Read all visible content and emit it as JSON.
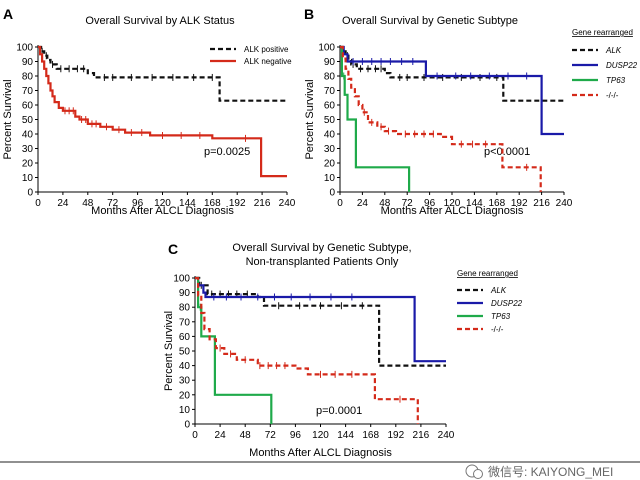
{
  "watermark": "微信号: KAIYONG_MEI",
  "colors": {
    "alk": "#111111",
    "dusp22": "#1a1aa8",
    "tp63": "#1faa4a",
    "neg": "#d42a1a",
    "alk_negative": "#d42a1a"
  },
  "chart_data": [
    {
      "type": "line",
      "label": "A",
      "title": "Overall Survival by ALK Status",
      "xlabel": "Months After ALCL Diagnosis",
      "ylabel": "Percent Survival",
      "xlim": [
        0,
        240
      ],
      "ylim": [
        0,
        100
      ],
      "xticks": [
        0,
        24,
        48,
        72,
        96,
        120,
        144,
        168,
        192,
        216,
        240
      ],
      "yticks": [
        0,
        10,
        20,
        30,
        40,
        50,
        60,
        70,
        80,
        90,
        100
      ],
      "legend_title": "",
      "annotation": "p=0.0025",
      "series": [
        {
          "name": "ALK positive",
          "color": "#111111",
          "dashed": true,
          "steps": [
            [
              0,
              100
            ],
            [
              3,
              97
            ],
            [
              6,
              94
            ],
            [
              9,
              91
            ],
            [
              12,
              88
            ],
            [
              18,
              85
            ],
            [
              48,
              82
            ],
            [
              54,
              79
            ],
            [
              174,
              79
            ],
            [
              175,
              63
            ],
            [
              240,
              63
            ]
          ],
          "censors": [
            [
              4,
              97
            ],
            [
              8,
              94
            ],
            [
              14,
              88
            ],
            [
              22,
              85
            ],
            [
              30,
              85
            ],
            [
              38,
              85
            ],
            [
              44,
              85
            ],
            [
              64,
              79
            ],
            [
              72,
              79
            ],
            [
              90,
              79
            ],
            [
              110,
              79
            ],
            [
              130,
              79
            ],
            [
              150,
              79
            ],
            [
              168,
              79
            ]
          ]
        },
        {
          "name": "ALK negative",
          "color": "#d42a1a",
          "dashed": false,
          "steps": [
            [
              0,
              100
            ],
            [
              2,
              95
            ],
            [
              4,
              90
            ],
            [
              6,
              85
            ],
            [
              8,
              80
            ],
            [
              10,
              75
            ],
            [
              12,
              70
            ],
            [
              14,
              66
            ],
            [
              16,
              62
            ],
            [
              20,
              58
            ],
            [
              24,
              56
            ],
            [
              36,
              52
            ],
            [
              40,
              50
            ],
            [
              48,
              47
            ],
            [
              60,
              45
            ],
            [
              72,
              43
            ],
            [
              84,
              41
            ],
            [
              108,
              39
            ],
            [
              168,
              37
            ],
            [
              214,
              37
            ],
            [
              215,
              11
            ],
            [
              240,
              11
            ]
          ],
          "censors": [
            [
              26,
              56
            ],
            [
              30,
              56
            ],
            [
              34,
              56
            ],
            [
              42,
              50
            ],
            [
              46,
              50
            ],
            [
              52,
              47
            ],
            [
              56,
              47
            ],
            [
              66,
              45
            ],
            [
              78,
              43
            ],
            [
              90,
              41
            ],
            [
              100,
              41
            ],
            [
              120,
              39
            ],
            [
              138,
              39
            ],
            [
              156,
              39
            ],
            [
              200,
              37
            ]
          ]
        }
      ]
    },
    {
      "type": "line",
      "label": "B",
      "title": "Overall Survival by Genetic Subtype",
      "xlabel": "Months After ALCL Diagnosis",
      "ylabel": "Percent Survival",
      "xlim": [
        0,
        240
      ],
      "ylim": [
        0,
        100
      ],
      "xticks": [
        0,
        24,
        48,
        72,
        96,
        120,
        144,
        168,
        192,
        216,
        240
      ],
      "yticks": [
        0,
        10,
        20,
        30,
        40,
        50,
        60,
        70,
        80,
        90,
        100
      ],
      "legend_title": "Gene rearranged",
      "annotation": "p<0.0001",
      "series": [
        {
          "name": "ALK",
          "color": "#111111",
          "dashed": true,
          "steps": [
            [
              0,
              100
            ],
            [
              3,
              97
            ],
            [
              6,
              94
            ],
            [
              9,
              91
            ],
            [
              12,
              88
            ],
            [
              18,
              85
            ],
            [
              48,
              82
            ],
            [
              54,
              79
            ],
            [
              174,
              79
            ],
            [
              175,
              63
            ],
            [
              240,
              63
            ]
          ],
          "censors": [
            [
              4,
              97
            ],
            [
              8,
              94
            ],
            [
              14,
              88
            ],
            [
              22,
              85
            ],
            [
              30,
              85
            ],
            [
              38,
              85
            ],
            [
              44,
              85
            ],
            [
              64,
              79
            ],
            [
              72,
              79
            ],
            [
              90,
              79
            ],
            [
              110,
              79
            ],
            [
              130,
              79
            ],
            [
              150,
              79
            ],
            [
              168,
              79
            ]
          ]
        },
        {
          "name": "DUSP22",
          "color": "#1a1aa8",
          "dashed": false,
          "steps": [
            [
              0,
              100
            ],
            [
              4,
              95
            ],
            [
              8,
              90
            ],
            [
              90,
              90
            ],
            [
              92,
              80
            ],
            [
              214,
              80
            ],
            [
              216,
              40
            ],
            [
              240,
              40
            ]
          ],
          "censors": [
            [
              14,
              90
            ],
            [
              24,
              90
            ],
            [
              34,
              90
            ],
            [
              44,
              90
            ],
            [
              54,
              90
            ],
            [
              66,
              90
            ],
            [
              78,
              90
            ],
            [
              104,
              80
            ],
            [
              124,
              80
            ],
            [
              140,
              80
            ],
            [
              160,
              80
            ],
            [
              180,
              80
            ],
            [
              200,
              80
            ]
          ]
        },
        {
          "name": "TP63",
          "color": "#1faa4a",
          "dashed": false,
          "steps": [
            [
              0,
              100
            ],
            [
              2,
              80
            ],
            [
              5,
              67
            ],
            [
              8,
              50
            ],
            [
              16,
              50
            ],
            [
              17,
              17
            ],
            [
              73,
              17
            ],
            [
              74,
              0
            ]
          ],
          "censors": [
            [
              4,
              80
            ]
          ]
        },
        {
          "name": "-/-/-",
          "color": "#d42a1a",
          "dashed": true,
          "steps": [
            [
              0,
              100
            ],
            [
              3,
              92
            ],
            [
              6,
              85
            ],
            [
              9,
              78
            ],
            [
              12,
              72
            ],
            [
              16,
              66
            ],
            [
              20,
              60
            ],
            [
              24,
              55
            ],
            [
              30,
              48
            ],
            [
              40,
              45
            ],
            [
              48,
              42
            ],
            [
              60,
              40
            ],
            [
              108,
              38
            ],
            [
              120,
              33
            ],
            [
              168,
              33
            ],
            [
              174,
              17
            ],
            [
              212,
              17
            ],
            [
              215,
              0
            ]
          ],
          "censors": [
            [
              26,
              55
            ],
            [
              34,
              48
            ],
            [
              44,
              45
            ],
            [
              52,
              42
            ],
            [
              70,
              40
            ],
            [
              80,
              40
            ],
            [
              90,
              40
            ],
            [
              100,
              40
            ],
            [
              130,
              33
            ],
            [
              142,
              33
            ],
            [
              156,
              33
            ],
            [
              200,
              17
            ]
          ]
        }
      ]
    },
    {
      "type": "line",
      "label": "C",
      "title": "Overall Survival by Genetic Subtype,",
      "subtitle": "Non-transplanted Patients Only",
      "xlabel": "Months After ALCL Diagnosis",
      "ylabel": "Percent Survival",
      "xlim": [
        0,
        240
      ],
      "ylim": [
        0,
        100
      ],
      "xticks": [
        0,
        24,
        48,
        72,
        96,
        120,
        144,
        168,
        192,
        216,
        240
      ],
      "yticks": [
        0,
        10,
        20,
        30,
        40,
        50,
        60,
        70,
        80,
        90,
        100
      ],
      "legend_title": "Gene rearranged",
      "annotation": "p=0.0001",
      "series": [
        {
          "name": "ALK",
          "color": "#111111",
          "dashed": true,
          "steps": [
            [
              0,
              100
            ],
            [
              4,
              95
            ],
            [
              12,
              89
            ],
            [
              60,
              87
            ],
            [
              66,
              81
            ],
            [
              174,
              81
            ],
            [
              176,
              40
            ],
            [
              240,
              40
            ]
          ],
          "censors": [
            [
              6,
              95
            ],
            [
              16,
              89
            ],
            [
              24,
              89
            ],
            [
              32,
              89
            ],
            [
              40,
              89
            ],
            [
              50,
              89
            ],
            [
              80,
              81
            ],
            [
              100,
              81
            ],
            [
              120,
              81
            ],
            [
              140,
              81
            ],
            [
              160,
              81
            ]
          ]
        },
        {
          "name": "DUSP22",
          "color": "#1a1aa8",
          "dashed": false,
          "steps": [
            [
              0,
              100
            ],
            [
              3,
              95
            ],
            [
              8,
              90
            ],
            [
              10,
              87
            ],
            [
              206,
              87
            ],
            [
              210,
              43
            ],
            [
              240,
              43
            ]
          ],
          "censors": [
            [
              18,
              87
            ],
            [
              30,
              87
            ],
            [
              44,
              87
            ],
            [
              60,
              87
            ],
            [
              76,
              87
            ],
            [
              92,
              87
            ],
            [
              110,
              87
            ],
            [
              130,
              87
            ],
            [
              150,
              87
            ]
          ]
        },
        {
          "name": "TP63",
          "color": "#1faa4a",
          "dashed": false,
          "steps": [
            [
              0,
              100
            ],
            [
              3,
              80
            ],
            [
              6,
              60
            ],
            [
              16,
              60
            ],
            [
              19,
              20
            ],
            [
              72,
              20
            ],
            [
              73,
              0
            ]
          ],
          "censors": [
            [
              5,
              80
            ]
          ]
        },
        {
          "name": "-/-/-",
          "color": "#d42a1a",
          "dashed": true,
          "steps": [
            [
              0,
              100
            ],
            [
              3,
              88
            ],
            [
              6,
              76
            ],
            [
              9,
              65
            ],
            [
              14,
              58
            ],
            [
              20,
              52
            ],
            [
              28,
              48
            ],
            [
              40,
              44
            ],
            [
              60,
              40
            ],
            [
              96,
              38
            ],
            [
              108,
              34
            ],
            [
              168,
              34
            ],
            [
              172,
              17
            ],
            [
              210,
              17
            ],
            [
              213,
              0
            ]
          ],
          "censors": [
            [
              24,
              52
            ],
            [
              34,
              48
            ],
            [
              48,
              44
            ],
            [
              62,
              40
            ],
            [
              70,
              40
            ],
            [
              78,
              40
            ],
            [
              86,
              40
            ],
            [
              120,
              34
            ],
            [
              134,
              34
            ],
            [
              150,
              34
            ],
            [
              196,
              17
            ]
          ]
        }
      ]
    }
  ]
}
